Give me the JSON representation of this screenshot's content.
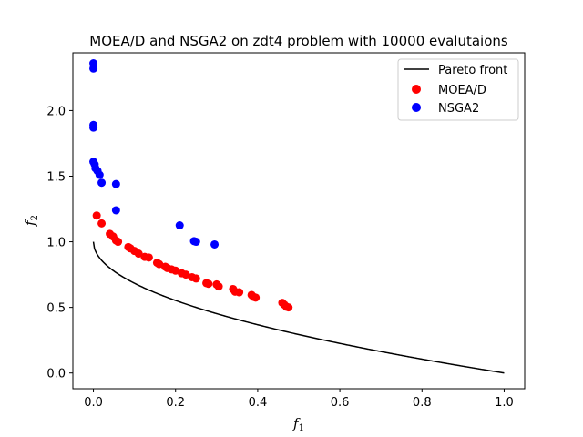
{
  "chart_data": {
    "type": "scatter",
    "title": "MOEA/D and NSGA2 on zdt4 problem with 10000 evalutaions",
    "xlabel": "f",
    "xlabel_sub": "1",
    "ylabel": "f",
    "ylabel_sub": "2",
    "xlim": [
      -0.05,
      1.05
    ],
    "ylim": [
      -0.12,
      2.44
    ],
    "x_ticks": [
      0.0,
      0.2,
      0.4,
      0.6,
      0.8,
      1.0
    ],
    "x_tick_labels": [
      "0.0",
      "0.2",
      "0.4",
      "0.6",
      "0.8",
      "1.0"
    ],
    "y_ticks": [
      0.0,
      0.5,
      1.0,
      1.5,
      2.0
    ],
    "y_tick_labels": [
      "0.0",
      "0.5",
      "1.0",
      "1.5",
      "2.0"
    ],
    "legend_position": "top-right",
    "grid": false,
    "pareto_front": {
      "name": "Pareto front",
      "color": "#000000",
      "function": "1 - sqrt(x)",
      "x_range": [
        0,
        1
      ]
    },
    "series": [
      {
        "name": "MOEA/D",
        "color": "#ff0000",
        "points": [
          [
            0.008,
            1.2
          ],
          [
            0.02,
            1.14
          ],
          [
            0.04,
            1.06
          ],
          [
            0.048,
            1.04
          ],
          [
            0.055,
            1.01
          ],
          [
            0.06,
            1.0
          ],
          [
            0.085,
            0.96
          ],
          [
            0.09,
            0.95
          ],
          [
            0.1,
            0.93
          ],
          [
            0.11,
            0.91
          ],
          [
            0.125,
            0.885
          ],
          [
            0.135,
            0.88
          ],
          [
            0.155,
            0.84
          ],
          [
            0.16,
            0.83
          ],
          [
            0.175,
            0.81
          ],
          [
            0.18,
            0.8
          ],
          [
            0.19,
            0.79
          ],
          [
            0.2,
            0.78
          ],
          [
            0.215,
            0.76
          ],
          [
            0.225,
            0.75
          ],
          [
            0.24,
            0.73
          ],
          [
            0.25,
            0.72
          ],
          [
            0.275,
            0.685
          ],
          [
            0.28,
            0.68
          ],
          [
            0.3,
            0.675
          ],
          [
            0.305,
            0.66
          ],
          [
            0.34,
            0.64
          ],
          [
            0.345,
            0.62
          ],
          [
            0.355,
            0.615
          ],
          [
            0.385,
            0.595
          ],
          [
            0.39,
            0.58
          ],
          [
            0.395,
            0.575
          ],
          [
            0.46,
            0.535
          ],
          [
            0.465,
            0.52
          ],
          [
            0.47,
            0.505
          ],
          [
            0.475,
            0.5
          ]
        ]
      },
      {
        "name": "NSGA2",
        "color": "#0000ff",
        "points": [
          [
            0.0,
            2.36
          ],
          [
            0.0,
            2.32
          ],
          [
            0.0,
            1.89
          ],
          [
            0.0,
            1.87
          ],
          [
            0.0,
            1.61
          ],
          [
            0.003,
            1.59
          ],
          [
            0.005,
            1.56
          ],
          [
            0.01,
            1.54
          ],
          [
            0.015,
            1.51
          ],
          [
            0.02,
            1.45
          ],
          [
            0.055,
            1.44
          ],
          [
            0.055,
            1.24
          ],
          [
            0.21,
            1.125
          ],
          [
            0.245,
            1.005
          ],
          [
            0.25,
            1.0
          ],
          [
            0.295,
            0.98
          ]
        ]
      }
    ]
  }
}
